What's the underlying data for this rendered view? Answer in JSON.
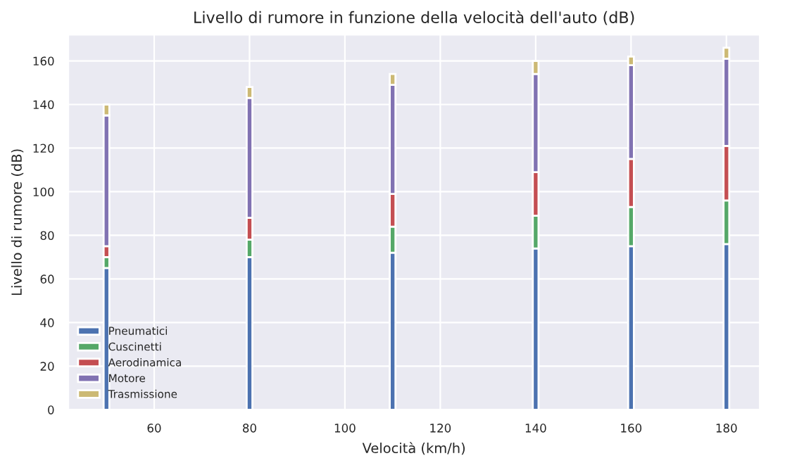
{
  "chart_data": {
    "type": "bar",
    "stacked": true,
    "title": "Livello di rumore in funzione della velocità dell'auto (dB)",
    "xlabel": "Velocità (km/h)",
    "ylabel": "Livello di rumore (dB)",
    "x": [
      50,
      80,
      110,
      140,
      160,
      180
    ],
    "series": [
      {
        "name": "Pneumatici",
        "color": "#4c72b0",
        "values": [
          65,
          70,
          72,
          74,
          75,
          76
        ]
      },
      {
        "name": "Cuscinetti",
        "color": "#55a868",
        "values": [
          5,
          8,
          12,
          15,
          18,
          20
        ]
      },
      {
        "name": "Aerodinamica",
        "color": "#c44e52",
        "values": [
          5,
          10,
          15,
          20,
          22,
          25
        ]
      },
      {
        "name": "Motore",
        "color": "#8172b2",
        "values": [
          60,
          55,
          50,
          45,
          43,
          40
        ]
      },
      {
        "name": "Trasmissione",
        "color": "#ccb974",
        "values": [
          5,
          5,
          5,
          6,
          4,
          5
        ]
      }
    ],
    "xlim": [
      42,
      187
    ],
    "ylim": [
      0,
      172
    ],
    "xticks": [
      60,
      80,
      100,
      120,
      140,
      160,
      180
    ],
    "yticks": [
      0,
      20,
      40,
      60,
      80,
      100,
      120,
      140,
      160
    ],
    "grid": true,
    "legend": "bottom left"
  }
}
